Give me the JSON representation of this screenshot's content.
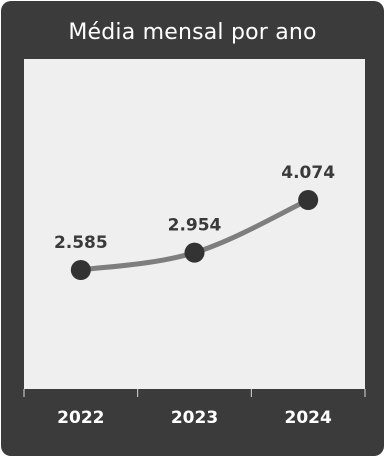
{
  "chart_data": {
    "type": "line",
    "title": "Média mensal por ano",
    "categories": [
      "2022",
      "2023",
      "2024"
    ],
    "series": [
      {
        "values": [
          2585,
          2954,
          4074
        ],
        "labels": [
          "2.585",
          "2.954",
          "4.074"
        ]
      }
    ],
    "xlabel": "",
    "ylabel": "",
    "grid": false,
    "legend": "none",
    "colors": {
      "card_background": "#3b3b3b",
      "plot_background": "#efefef",
      "line": "#7e7e7e",
      "marker": "#333333",
      "data_label": "#3a3a3a",
      "axis_text": "#ffffff"
    }
  }
}
